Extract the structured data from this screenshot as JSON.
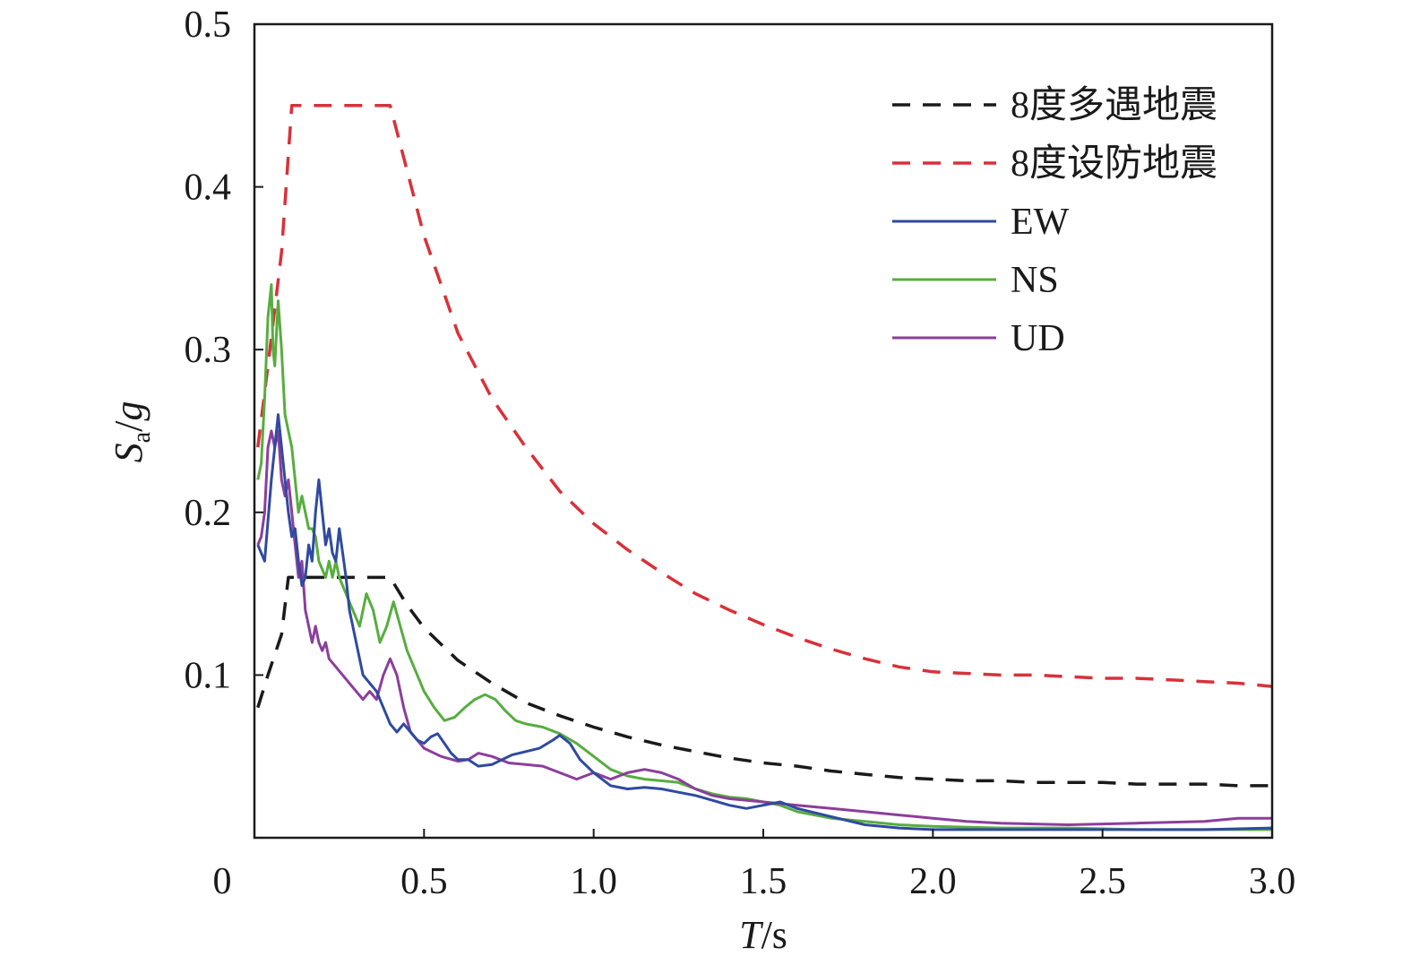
{
  "chart_data": {
    "type": "line",
    "xlabel": {
      "main": "T",
      "unit": "/s"
    },
    "ylabel": {
      "main": "S",
      "sub": "a",
      "unit": "/",
      "var": "g"
    },
    "xlim": [
      0,
      3.0
    ],
    "ylim": [
      0,
      0.5
    ],
    "x_ticks": [
      0,
      0.5,
      1.0,
      1.5,
      2.0,
      2.5,
      3.0
    ],
    "x_tick_labels": [
      "0",
      "0.5",
      "1.0",
      "1.5",
      "2.0",
      "2.5",
      "3.0"
    ],
    "y_ticks": [
      0.1,
      0.2,
      0.3,
      0.4,
      0.5
    ],
    "y_tick_labels": [
      "0.1",
      "0.2",
      "0.3",
      "0.4",
      "0.5"
    ],
    "grid": false,
    "legend_position": "top-right",
    "series": [
      {
        "name": "8度多遇地震",
        "color": "#1a1a1a",
        "dashed": true,
        "points": [
          [
            0.01,
            0.08
          ],
          [
            0.04,
            0.1
          ],
          [
            0.08,
            0.125
          ],
          [
            0.1,
            0.16
          ],
          [
            0.15,
            0.16
          ],
          [
            0.2,
            0.16
          ],
          [
            0.25,
            0.16
          ],
          [
            0.3,
            0.16
          ],
          [
            0.35,
            0.16
          ],
          [
            0.4,
            0.16
          ],
          [
            0.45,
            0.143
          ],
          [
            0.5,
            0.129
          ],
          [
            0.6,
            0.109
          ],
          [
            0.7,
            0.095
          ],
          [
            0.8,
            0.083
          ],
          [
            0.9,
            0.075
          ],
          [
            1.0,
            0.068
          ],
          [
            1.1,
            0.062
          ],
          [
            1.2,
            0.057
          ],
          [
            1.3,
            0.053
          ],
          [
            1.4,
            0.049
          ],
          [
            1.5,
            0.046
          ],
          [
            1.6,
            0.044
          ],
          [
            1.7,
            0.041
          ],
          [
            1.8,
            0.039
          ],
          [
            1.9,
            0.037
          ],
          [
            2.0,
            0.036
          ],
          [
            2.1,
            0.035
          ],
          [
            2.2,
            0.035
          ],
          [
            2.3,
            0.034
          ],
          [
            2.4,
            0.034
          ],
          [
            2.5,
            0.034
          ],
          [
            2.6,
            0.033
          ],
          [
            2.7,
            0.033
          ],
          [
            2.8,
            0.033
          ],
          [
            2.9,
            0.032
          ],
          [
            3.0,
            0.032
          ]
        ]
      },
      {
        "name": "8度设防地震",
        "color": "#d8313a",
        "dashed": true,
        "points": [
          [
            0.01,
            0.24
          ],
          [
            0.04,
            0.29
          ],
          [
            0.08,
            0.36
          ],
          [
            0.1,
            0.42
          ],
          [
            0.11,
            0.45
          ],
          [
            0.15,
            0.45
          ],
          [
            0.2,
            0.45
          ],
          [
            0.3,
            0.45
          ],
          [
            0.4,
            0.45
          ],
          [
            0.45,
            0.41
          ],
          [
            0.5,
            0.37
          ],
          [
            0.55,
            0.34
          ],
          [
            0.6,
            0.31
          ],
          [
            0.7,
            0.27
          ],
          [
            0.8,
            0.24
          ],
          [
            0.9,
            0.213
          ],
          [
            1.0,
            0.193
          ],
          [
            1.1,
            0.177
          ],
          [
            1.2,
            0.163
          ],
          [
            1.3,
            0.15
          ],
          [
            1.4,
            0.14
          ],
          [
            1.5,
            0.131
          ],
          [
            1.6,
            0.123
          ],
          [
            1.7,
            0.116
          ],
          [
            1.8,
            0.11
          ],
          [
            1.9,
            0.105
          ],
          [
            2.0,
            0.102
          ],
          [
            2.1,
            0.101
          ],
          [
            2.2,
            0.1
          ],
          [
            2.3,
            0.1
          ],
          [
            2.4,
            0.099
          ],
          [
            2.5,
            0.098
          ],
          [
            2.6,
            0.098
          ],
          [
            2.7,
            0.097
          ],
          [
            2.8,
            0.096
          ],
          [
            2.9,
            0.095
          ],
          [
            3.0,
            0.093
          ]
        ]
      },
      {
        "name": "EW",
        "color": "#2f4aa0",
        "dashed": false,
        "points": [
          [
            0.01,
            0.18
          ],
          [
            0.03,
            0.17
          ],
          [
            0.05,
            0.22
          ],
          [
            0.06,
            0.24
          ],
          [
            0.07,
            0.26
          ],
          [
            0.08,
            0.24
          ],
          [
            0.09,
            0.22
          ],
          [
            0.1,
            0.2
          ],
          [
            0.11,
            0.185
          ],
          [
            0.12,
            0.19
          ],
          [
            0.13,
            0.17
          ],
          [
            0.14,
            0.155
          ],
          [
            0.15,
            0.16
          ],
          [
            0.16,
            0.18
          ],
          [
            0.17,
            0.17
          ],
          [
            0.18,
            0.2
          ],
          [
            0.19,
            0.22
          ],
          [
            0.2,
            0.2
          ],
          [
            0.21,
            0.18
          ],
          [
            0.22,
            0.19
          ],
          [
            0.23,
            0.175
          ],
          [
            0.24,
            0.17
          ],
          [
            0.25,
            0.19
          ],
          [
            0.26,
            0.175
          ],
          [
            0.27,
            0.16
          ],
          [
            0.28,
            0.14
          ],
          [
            0.3,
            0.12
          ],
          [
            0.32,
            0.1
          ],
          [
            0.34,
            0.095
          ],
          [
            0.36,
            0.09
          ],
          [
            0.38,
            0.08
          ],
          [
            0.4,
            0.07
          ],
          [
            0.42,
            0.065
          ],
          [
            0.44,
            0.07
          ],
          [
            0.46,
            0.065
          ],
          [
            0.48,
            0.06
          ],
          [
            0.5,
            0.058
          ],
          [
            0.52,
            0.062
          ],
          [
            0.54,
            0.064
          ],
          [
            0.56,
            0.058
          ],
          [
            0.58,
            0.052
          ],
          [
            0.6,
            0.048
          ],
          [
            0.63,
            0.048
          ],
          [
            0.66,
            0.044
          ],
          [
            0.7,
            0.045
          ],
          [
            0.73,
            0.048
          ],
          [
            0.76,
            0.051
          ],
          [
            0.8,
            0.053
          ],
          [
            0.84,
            0.055
          ],
          [
            0.88,
            0.06
          ],
          [
            0.9,
            0.063
          ],
          [
            0.93,
            0.058
          ],
          [
            0.96,
            0.048
          ],
          [
            1.0,
            0.04
          ],
          [
            1.05,
            0.032
          ],
          [
            1.1,
            0.03
          ],
          [
            1.15,
            0.031
          ],
          [
            1.2,
            0.03
          ],
          [
            1.25,
            0.028
          ],
          [
            1.3,
            0.026
          ],
          [
            1.35,
            0.023
          ],
          [
            1.4,
            0.02
          ],
          [
            1.45,
            0.018
          ],
          [
            1.5,
            0.02
          ],
          [
            1.55,
            0.022
          ],
          [
            1.6,
            0.018
          ],
          [
            1.7,
            0.013
          ],
          [
            1.8,
            0.008
          ],
          [
            1.9,
            0.006
          ],
          [
            2.0,
            0.005
          ],
          [
            2.2,
            0.005
          ],
          [
            2.4,
            0.005
          ],
          [
            2.6,
            0.005
          ],
          [
            2.8,
            0.005
          ],
          [
            3.0,
            0.006
          ]
        ]
      },
      {
        "name": "NS",
        "color": "#57ad3f",
        "dashed": false,
        "points": [
          [
            0.01,
            0.22
          ],
          [
            0.02,
            0.23
          ],
          [
            0.03,
            0.27
          ],
          [
            0.04,
            0.32
          ],
          [
            0.05,
            0.34
          ],
          [
            0.055,
            0.3
          ],
          [
            0.06,
            0.29
          ],
          [
            0.07,
            0.33
          ],
          [
            0.08,
            0.3
          ],
          [
            0.09,
            0.26
          ],
          [
            0.1,
            0.25
          ],
          [
            0.11,
            0.24
          ],
          [
            0.12,
            0.22
          ],
          [
            0.13,
            0.2
          ],
          [
            0.14,
            0.21
          ],
          [
            0.15,
            0.2
          ],
          [
            0.16,
            0.19
          ],
          [
            0.17,
            0.19
          ],
          [
            0.18,
            0.185
          ],
          [
            0.19,
            0.17
          ],
          [
            0.2,
            0.165
          ],
          [
            0.21,
            0.16
          ],
          [
            0.22,
            0.17
          ],
          [
            0.23,
            0.16
          ],
          [
            0.24,
            0.17
          ],
          [
            0.25,
            0.16
          ],
          [
            0.27,
            0.15
          ],
          [
            0.29,
            0.14
          ],
          [
            0.31,
            0.13
          ],
          [
            0.33,
            0.15
          ],
          [
            0.35,
            0.14
          ],
          [
            0.37,
            0.12
          ],
          [
            0.39,
            0.13
          ],
          [
            0.41,
            0.145
          ],
          [
            0.43,
            0.13
          ],
          [
            0.45,
            0.115
          ],
          [
            0.48,
            0.1
          ],
          [
            0.5,
            0.09
          ],
          [
            0.53,
            0.08
          ],
          [
            0.56,
            0.072
          ],
          [
            0.59,
            0.074
          ],
          [
            0.62,
            0.08
          ],
          [
            0.65,
            0.085
          ],
          [
            0.68,
            0.088
          ],
          [
            0.71,
            0.085
          ],
          [
            0.74,
            0.078
          ],
          [
            0.77,
            0.072
          ],
          [
            0.8,
            0.07
          ],
          [
            0.85,
            0.068
          ],
          [
            0.9,
            0.064
          ],
          [
            0.95,
            0.058
          ],
          [
            1.0,
            0.05
          ],
          [
            1.05,
            0.042
          ],
          [
            1.1,
            0.038
          ],
          [
            1.15,
            0.036
          ],
          [
            1.2,
            0.035
          ],
          [
            1.25,
            0.034
          ],
          [
            1.3,
            0.03
          ],
          [
            1.35,
            0.027
          ],
          [
            1.4,
            0.025
          ],
          [
            1.45,
            0.024
          ],
          [
            1.5,
            0.022
          ],
          [
            1.55,
            0.02
          ],
          [
            1.6,
            0.016
          ],
          [
            1.7,
            0.012
          ],
          [
            1.8,
            0.01
          ],
          [
            1.9,
            0.008
          ],
          [
            2.0,
            0.007
          ],
          [
            2.2,
            0.006
          ],
          [
            2.4,
            0.006
          ],
          [
            2.6,
            0.005
          ],
          [
            2.8,
            0.005
          ],
          [
            3.0,
            0.005
          ]
        ]
      },
      {
        "name": "UD",
        "color": "#8c3e9c",
        "dashed": false,
        "points": [
          [
            0.01,
            0.18
          ],
          [
            0.02,
            0.185
          ],
          [
            0.03,
            0.2
          ],
          [
            0.04,
            0.24
          ],
          [
            0.05,
            0.25
          ],
          [
            0.06,
            0.24
          ],
          [
            0.07,
            0.25
          ],
          [
            0.08,
            0.22
          ],
          [
            0.09,
            0.21
          ],
          [
            0.1,
            0.22
          ],
          [
            0.11,
            0.2
          ],
          [
            0.12,
            0.18
          ],
          [
            0.13,
            0.16
          ],
          [
            0.14,
            0.17
          ],
          [
            0.15,
            0.14
          ],
          [
            0.16,
            0.13
          ],
          [
            0.17,
            0.12
          ],
          [
            0.18,
            0.13
          ],
          [
            0.19,
            0.12
          ],
          [
            0.2,
            0.115
          ],
          [
            0.21,
            0.12
          ],
          [
            0.22,
            0.11
          ],
          [
            0.24,
            0.105
          ],
          [
            0.26,
            0.1
          ],
          [
            0.28,
            0.095
          ],
          [
            0.3,
            0.09
          ],
          [
            0.32,
            0.085
          ],
          [
            0.34,
            0.09
          ],
          [
            0.36,
            0.085
          ],
          [
            0.38,
            0.1
          ],
          [
            0.4,
            0.11
          ],
          [
            0.42,
            0.1
          ],
          [
            0.44,
            0.08
          ],
          [
            0.46,
            0.065
          ],
          [
            0.48,
            0.06
          ],
          [
            0.5,
            0.055
          ],
          [
            0.55,
            0.05
          ],
          [
            0.6,
            0.047
          ],
          [
            0.63,
            0.048
          ],
          [
            0.66,
            0.052
          ],
          [
            0.7,
            0.05
          ],
          [
            0.75,
            0.046
          ],
          [
            0.8,
            0.045
          ],
          [
            0.85,
            0.044
          ],
          [
            0.9,
            0.04
          ],
          [
            0.95,
            0.036
          ],
          [
            1.0,
            0.04
          ],
          [
            1.05,
            0.036
          ],
          [
            1.1,
            0.04
          ],
          [
            1.15,
            0.042
          ],
          [
            1.2,
            0.04
          ],
          [
            1.25,
            0.036
          ],
          [
            1.3,
            0.03
          ],
          [
            1.35,
            0.026
          ],
          [
            1.4,
            0.024
          ],
          [
            1.5,
            0.022
          ],
          [
            1.6,
            0.02
          ],
          [
            1.7,
            0.018
          ],
          [
            1.8,
            0.016
          ],
          [
            1.9,
            0.014
          ],
          [
            2.0,
            0.012
          ],
          [
            2.1,
            0.01
          ],
          [
            2.2,
            0.009
          ],
          [
            2.4,
            0.008
          ],
          [
            2.6,
            0.009
          ],
          [
            2.8,
            0.01
          ],
          [
            2.9,
            0.012
          ],
          [
            3.0,
            0.012
          ]
        ]
      }
    ]
  }
}
